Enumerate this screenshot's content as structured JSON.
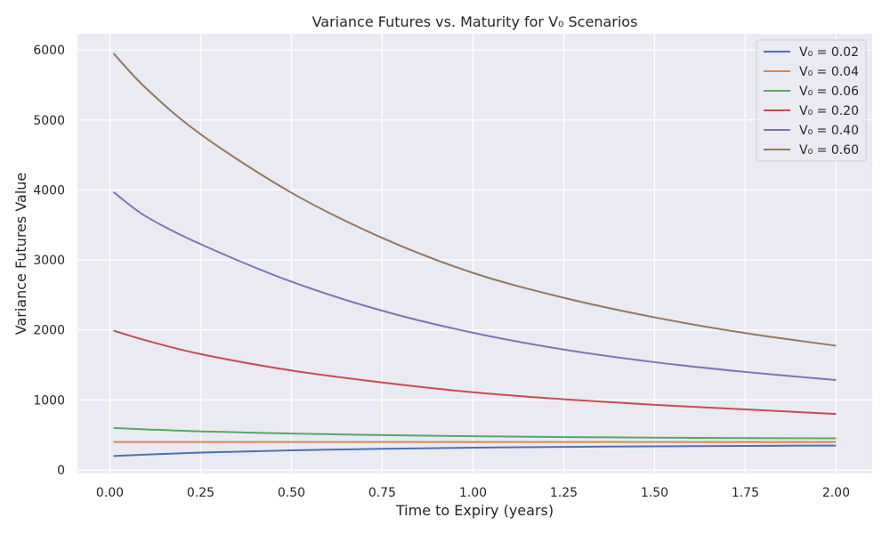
{
  "chart_data": {
    "type": "line",
    "title": "Variance Futures vs. Maturity for V₀ Scenarios",
    "xlabel": "Time to Expiry (years)",
    "ylabel": "Variance Futures Value",
    "xlim": [
      -0.0895,
      2.0995
    ],
    "ylim": [
      -50,
      6230
    ],
    "xticks": [
      0.0,
      0.25,
      0.5,
      0.75,
      1.0,
      1.25,
      1.5,
      1.75,
      2.0
    ],
    "xtick_labels": [
      "0.00",
      "0.25",
      "0.50",
      "0.75",
      "1.00",
      "1.25",
      "1.50",
      "1.75",
      "2.00"
    ],
    "yticks": [
      0,
      1000,
      2000,
      3000,
      4000,
      5000,
      6000
    ],
    "ytick_labels": [
      "0",
      "1000",
      "2000",
      "3000",
      "4000",
      "5000",
      "6000"
    ],
    "grid": true,
    "legend_position": "top-right",
    "x": [
      0.01,
      0.1,
      0.25,
      0.5,
      0.75,
      1.0,
      1.25,
      1.5,
      1.75,
      2.0
    ],
    "series": [
      {
        "name": "V₀ = 0.02",
        "color": "#4c72b0",
        "values": [
          200,
          220,
          248,
          280,
          302,
          318,
          330,
          338,
          344,
          349
        ]
      },
      {
        "name": "V₀ = 0.04",
        "color": "#dd8452",
        "values": [
          400,
          400,
          400,
          400,
          400,
          400,
          400,
          400,
          400,
          400
        ]
      },
      {
        "name": "V₀ = 0.06",
        "color": "#55a868",
        "values": [
          600,
          580,
          551,
          521,
          498,
          482,
          470,
          462,
          456,
          452
        ]
      },
      {
        "name": "V₀ = 0.20",
        "color": "#c44e52",
        "values": [
          1990,
          1850,
          1655,
          1421,
          1250,
          1110,
          1010,
          930,
          865,
          800
        ]
      },
      {
        "name": "V₀ = 0.40",
        "color": "#8172b3",
        "values": [
          3970,
          3620,
          3225,
          2690,
          2275,
          1960,
          1720,
          1540,
          1400,
          1285
        ]
      },
      {
        "name": "V₀ = 0.60",
        "color": "#937860",
        "values": [
          5950,
          5450,
          4795,
          3960,
          3315,
          2815,
          2460,
          2180,
          1955,
          1775
        ]
      }
    ]
  }
}
